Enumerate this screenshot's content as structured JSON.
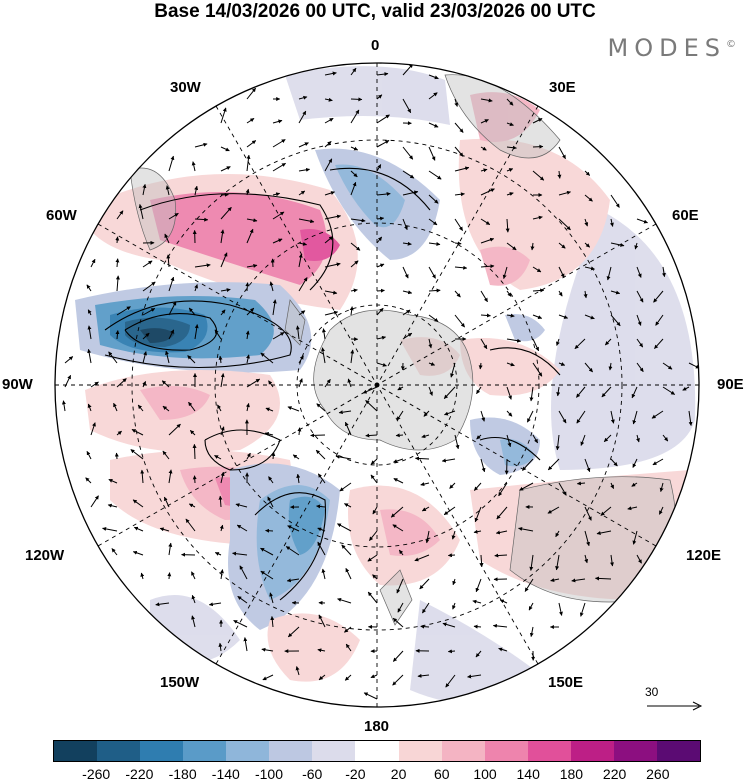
{
  "title": "Base 14/03/2026 00 UTC, valid 23/03/2026 00 UTC",
  "brand": "MODES",
  "brand_mark": "©",
  "longitude_labels": {
    "top": "0",
    "top_left": "30W",
    "top_right": "30E",
    "upper_left": "60W",
    "upper_right": "60E",
    "left": "90W",
    "right": "90E",
    "lower_left": "120W",
    "lower_right": "120E",
    "bottom_left": "150W",
    "bottom_right": "150E",
    "bottom": "180"
  },
  "reference_vector": "30",
  "colorbar": {
    "colors": [
      "#12405e",
      "#1f5e87",
      "#2f7db0",
      "#5a9bc8",
      "#8fb6da",
      "#bdc8e2",
      "#dcdceb",
      "#ffffff",
      "#f8d6d6",
      "#f4b4c3",
      "#ee84ad",
      "#e1509a",
      "#bd1f86",
      "#8c0f80",
      "#5b0b73"
    ],
    "tick_labels": [
      "-260",
      "-220",
      "-180",
      "-140",
      "-100",
      "-60",
      "-20",
      "20",
      "60",
      "100",
      "140",
      "180",
      "220",
      "260"
    ]
  }
}
